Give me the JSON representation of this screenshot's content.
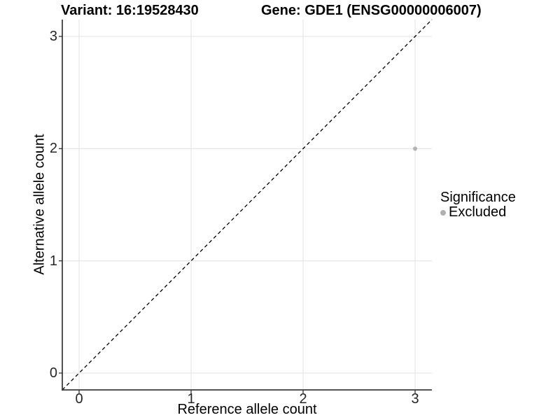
{
  "header": {
    "variant_title": "Variant: 16:19528430",
    "gene_title": "Gene: GDE1 (ENSG00000006007)"
  },
  "axes": {
    "x_label": "Reference allele count",
    "y_label": "Alternative allele count"
  },
  "legend": {
    "title": "Significance",
    "items": [
      {
        "label": "Excluded",
        "color": "#b0b0b0",
        "marker": "circle"
      }
    ]
  },
  "chart_data": {
    "type": "scatter",
    "title": "Variant: 16:19528430    Gene: GDE1 (ENSG00000006007)",
    "xlabel": "Reference allele count",
    "ylabel": "Alternative allele count",
    "xlim": [
      -0.15,
      3.15
    ],
    "ylim": [
      -0.15,
      3.15
    ],
    "x_ticks": [
      0,
      1,
      2,
      3
    ],
    "x_tick_labels": [
      "0",
      "1",
      "2",
      "3"
    ],
    "y_ticks": [
      0,
      1,
      2,
      3
    ],
    "y_tick_labels": [
      "0",
      "1",
      "2",
      "3"
    ],
    "grid": true,
    "legend_position": "right",
    "series": [
      {
        "name": "Excluded",
        "color": "#b3b3b3",
        "points": [
          {
            "x": 3,
            "y": 2
          }
        ]
      }
    ],
    "reference_line": {
      "type": "identity",
      "slope": 1,
      "intercept": 0,
      "style": "dashed",
      "color": "#000000"
    },
    "colors": {
      "background": "#ffffff",
      "grid": "#e6e6e6",
      "axis": "#3c3c3c",
      "tick": "#333333",
      "point": "#b3b3b3",
      "dashed_line": "#000000"
    }
  }
}
